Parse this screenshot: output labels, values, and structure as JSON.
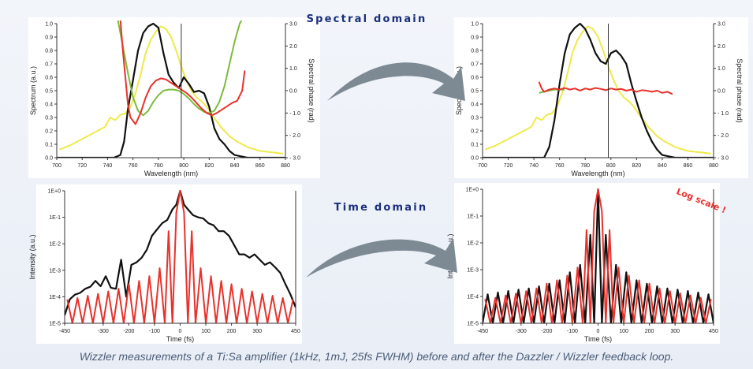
{
  "headings": {
    "spectral": "Spectral domain",
    "time": "Time domain",
    "log_scale": "Log scale !"
  },
  "caption": "Wizzler measurements of a Ti:Sa amplifier (1kHz, 1mJ, 25fs FWHM) before and after the Dazzler / Wizzler feedback loop.",
  "colors": {
    "spectrum": "#111111",
    "reference": "#eeea4a",
    "phase": "#e8322c",
    "fit": "#7cbc3c",
    "heading": "#1b2f7a",
    "arrow": "#7d8a93"
  },
  "chart_data": [
    {
      "id": "spectral-before",
      "type": "line",
      "xlabel": "Wavelength (nm)",
      "ylabel": "Spectrum (a.u.)",
      "y2label": "Spectral phase (rad)",
      "xlim": [
        700,
        880
      ],
      "ylim": [
        0,
        1.0
      ],
      "y2lim": [
        -3.0,
        3.0
      ],
      "xticks": [
        "700",
        "720",
        "740",
        "760",
        "780",
        "800",
        "820",
        "840",
        "860",
        "880"
      ],
      "yticks": [
        "0.0",
        "0.1",
        "0.2",
        "0.3",
        "0.4",
        "0.5",
        "0.6",
        "0.7",
        "0.8",
        "0.9",
        "1.0"
      ],
      "y2ticks": [
        "3.0",
        "2.0",
        "1.0",
        "0.0",
        "- 1.0",
        "- 2.0",
        "- 3.0"
      ],
      "vline": 798,
      "series": [
        {
          "role": "reference",
          "color": "#eeea4a",
          "axis": "y",
          "x": [
            702,
            710,
            720,
            730,
            738,
            742,
            746,
            750,
            754,
            758,
            762,
            766,
            770,
            774,
            778,
            782,
            786,
            790,
            794,
            798,
            802,
            806,
            810,
            814,
            818,
            822,
            826,
            830,
            836,
            842,
            850,
            860,
            870,
            878
          ],
          "y": [
            0.06,
            0.09,
            0.14,
            0.19,
            0.23,
            0.3,
            0.28,
            0.32,
            0.33,
            0.38,
            0.48,
            0.62,
            0.78,
            0.88,
            0.94,
            0.98,
            0.96,
            0.9,
            0.8,
            0.68,
            0.58,
            0.5,
            0.45,
            0.42,
            0.38,
            0.32,
            0.27,
            0.22,
            0.16,
            0.12,
            0.08,
            0.05,
            0.04,
            0.03
          ]
        },
        {
          "role": "spectrum",
          "color": "#111111",
          "axis": "y",
          "x": [
            700,
            745,
            750,
            753,
            756,
            760,
            764,
            768,
            772,
            776,
            780,
            784,
            788,
            792,
            796,
            800,
            804,
            808,
            812,
            816,
            820,
            824,
            828,
            832,
            836,
            840,
            845,
            850,
            860,
            880
          ],
          "y": [
            0,
            0,
            0.02,
            0.12,
            0.36,
            0.58,
            0.8,
            0.93,
            0.98,
            1.0,
            0.97,
            0.78,
            0.62,
            0.56,
            0.52,
            0.6,
            0.55,
            0.49,
            0.5,
            0.48,
            0.38,
            0.22,
            0.14,
            0.1,
            0.05,
            0.02,
            0.01,
            0,
            0,
            0
          ]
        },
        {
          "role": "fit",
          "color": "#7cbc3c",
          "axis": "y2",
          "x": [
            748,
            752,
            756,
            760,
            764,
            768,
            772,
            776,
            780,
            784,
            788,
            792,
            796,
            800,
            804,
            808,
            812,
            816,
            820,
            824,
            828,
            832,
            836,
            840,
            844,
            848
          ],
          "y": [
            3.2,
            2.0,
            0.8,
            -0.3,
            -0.9,
            -1.1,
            -0.9,
            -0.5,
            -0.2,
            0.0,
            0.05,
            0.05,
            0.0,
            -0.15,
            -0.35,
            -0.6,
            -0.8,
            -0.95,
            -1.0,
            -0.9,
            -0.5,
            0.2,
            1.2,
            2.2,
            3.0,
            3.4
          ]
        },
        {
          "role": "phase",
          "color": "#e8322c",
          "axis": "y2",
          "x": [
            750,
            752,
            754,
            756,
            758,
            762,
            766,
            770,
            774,
            778,
            782,
            786,
            790,
            794,
            798,
            802,
            806,
            810,
            814,
            818,
            822,
            826,
            830,
            834,
            838,
            842,
            846,
            848
          ],
          "y": [
            3.2,
            1.8,
            0.6,
            -0.6,
            -1.2,
            -1.5,
            -1.0,
            -0.3,
            0.2,
            0.45,
            0.55,
            0.5,
            0.35,
            0.2,
            0.05,
            -0.1,
            -0.3,
            -0.55,
            -0.8,
            -1.0,
            -1.1,
            -1.0,
            -0.85,
            -0.7,
            -0.55,
            -0.45,
            0.0,
            0.9
          ]
        }
      ]
    },
    {
      "id": "spectral-after",
      "type": "line",
      "xlabel": "Wavelength (nm)",
      "ylabel": "Spectrum (a.u.)",
      "y2label": "Spectral phase (rad)",
      "xlim": [
        700,
        880
      ],
      "ylim": [
        0,
        1.0
      ],
      "y2lim": [
        -3.0,
        3.0
      ],
      "xticks": [
        "700",
        "720",
        "740",
        "760",
        "780",
        "800",
        "820",
        "840",
        "860",
        "880"
      ],
      "yticks": [
        "0.0",
        "0.1",
        "0.2",
        "0.3",
        "0.4",
        "0.5",
        "0.6",
        "0.7",
        "0.8",
        "0.9",
        "1.0"
      ],
      "y2ticks": [
        "3.0",
        "2.0",
        "1.0",
        "0.0",
        "- 1.0",
        "- 2.0",
        "- 3.0"
      ],
      "vline": 798,
      "series": [
        {
          "role": "reference",
          "color": "#eeea4a",
          "axis": "y",
          "x": [
            702,
            710,
            720,
            730,
            738,
            742,
            746,
            750,
            754,
            758,
            762,
            766,
            770,
            774,
            778,
            782,
            786,
            790,
            794,
            798,
            802,
            806,
            810,
            814,
            818,
            822,
            826,
            830,
            836,
            842,
            850,
            860,
            870,
            878
          ],
          "y": [
            0.06,
            0.09,
            0.14,
            0.19,
            0.23,
            0.3,
            0.28,
            0.32,
            0.33,
            0.38,
            0.48,
            0.62,
            0.78,
            0.88,
            0.94,
            0.98,
            0.96,
            0.9,
            0.8,
            0.68,
            0.58,
            0.5,
            0.45,
            0.42,
            0.38,
            0.32,
            0.27,
            0.22,
            0.16,
            0.12,
            0.08,
            0.05,
            0.04,
            0.03
          ]
        },
        {
          "role": "spectrum",
          "color": "#111111",
          "axis": "y",
          "x": [
            700,
            748,
            752,
            756,
            760,
            764,
            768,
            772,
            776,
            780,
            784,
            788,
            792,
            796,
            800,
            804,
            808,
            812,
            816,
            820,
            824,
            828,
            832,
            836,
            840,
            845,
            850,
            880
          ],
          "y": [
            0,
            0,
            0.08,
            0.28,
            0.55,
            0.78,
            0.92,
            0.97,
            1.0,
            0.96,
            0.88,
            0.78,
            0.72,
            0.7,
            0.78,
            0.8,
            0.76,
            0.7,
            0.55,
            0.42,
            0.3,
            0.2,
            0.12,
            0.06,
            0.02,
            0.01,
            0,
            0
          ]
        },
        {
          "role": "fit",
          "color": "#7cbc3c",
          "axis": "y2",
          "x": [
            744,
            748,
            752,
            756,
            760,
            764
          ],
          "y": [
            -0.1,
            -0.05,
            0.0,
            0.05,
            0.05,
            0.05
          ]
        },
        {
          "role": "phase",
          "color": "#e8322c",
          "axis": "y2",
          "x": [
            744,
            746,
            748,
            752,
            756,
            760,
            764,
            768,
            772,
            776,
            780,
            784,
            788,
            792,
            796,
            800,
            804,
            808,
            812,
            816,
            820,
            824,
            828,
            832,
            836,
            840,
            844,
            848
          ],
          "y": [
            0.4,
            0.1,
            -0.05,
            0.05,
            0.1,
            0.05,
            0.12,
            0.05,
            0.1,
            0.0,
            0.1,
            0.05,
            0.12,
            0.08,
            0.02,
            0.1,
            0.05,
            0.08,
            0.0,
            0.05,
            -0.05,
            0.02,
            0.0,
            -0.05,
            0.0,
            -0.1,
            -0.05,
            -0.15
          ]
        }
      ]
    },
    {
      "id": "time-before",
      "type": "line",
      "yscale": "log",
      "xlabel": "Time (fs)",
      "ylabel": "Intensity (a.u.)",
      "xlim": [
        -450,
        450
      ],
      "ylim": [
        1e-05,
        1
      ],
      "xticks": [
        "-450",
        "-300",
        "-200",
        "-100",
        "0",
        "100",
        "200",
        "300",
        "450"
      ],
      "yticks": [
        "1E-5",
        "1E-4",
        "1E-3",
        "1E-2",
        "1E-1",
        "1E+0"
      ],
      "series": [
        {
          "role": "intensity",
          "color": "#111111",
          "x": [
            -450,
            -430,
            -410,
            -390,
            -370,
            -350,
            -330,
            -310,
            -290,
            -270,
            -250,
            -230,
            -210,
            -190,
            -170,
            -150,
            -130,
            -110,
            -90,
            -70,
            -50,
            -30,
            -15,
            0,
            15,
            30,
            50,
            70,
            90,
            110,
            130,
            150,
            170,
            190,
            210,
            230,
            250,
            270,
            290,
            310,
            330,
            350,
            370,
            390,
            410,
            430,
            450
          ],
          "y": [
            2e-05,
            8e-05,
            0.00012,
            0.00014,
            0.0002,
            0.00024,
            0.0004,
            0.00025,
            0.0006,
            0.00022,
            0.0002,
            0.0025,
            0.0001,
            0.0016,
            0.002,
            0.003,
            0.006,
            0.02,
            0.035,
            0.06,
            0.08,
            0.2,
            0.3,
            1.0,
            0.3,
            0.2,
            0.12,
            0.1,
            0.09,
            0.06,
            0.05,
            0.03,
            0.03,
            0.02,
            0.009,
            0.004,
            0.004,
            0.003,
            0.004,
            0.0025,
            0.0016,
            0.002,
            0.0013,
            0.0008,
            0.0003,
            0.00012,
            4e-05
          ]
        },
        {
          "role": "fit",
          "color": "#e8322c",
          "x": [
            -440,
            -420,
            -400,
            -380,
            -360,
            -340,
            -320,
            -300,
            -280,
            -260,
            -240,
            -220,
            -200,
            -180,
            -160,
            -140,
            -120,
            -100,
            -80,
            -60,
            -45,
            -30,
            -15,
            0,
            15,
            30,
            45,
            60,
            80,
            100,
            120,
            140,
            160,
            180,
            200,
            220,
            240,
            260,
            280,
            300,
            320,
            340,
            360,
            380,
            400,
            420,
            440
          ],
          "y": [
            8e-05,
            1e-05,
            9e-05,
            1e-05,
            0.00011,
            1e-05,
            0.00013,
            1e-05,
            0.00016,
            1e-05,
            0.0002,
            1e-05,
            0.0003,
            1e-05,
            0.0004,
            1e-05,
            0.0006,
            1e-05,
            0.0012,
            1e-05,
            0.03,
            1e-05,
            0.15,
            1.0,
            0.15,
            1e-05,
            0.03,
            1e-05,
            0.0012,
            1e-05,
            0.0006,
            1e-05,
            0.0004,
            1e-05,
            0.0003,
            1e-05,
            0.0002,
            1e-05,
            0.00016,
            1e-05,
            0.00013,
            1e-05,
            0.00011,
            1e-05,
            9e-05,
            1e-05,
            8e-05
          ]
        }
      ]
    },
    {
      "id": "time-after",
      "type": "line",
      "yscale": "log",
      "xlabel": "Time (fs)",
      "ylabel": "Intensity (a.u.)",
      "xlim": [
        -450,
        450
      ],
      "ylim": [
        1e-05,
        1
      ],
      "xticks": [
        "-450",
        "-300",
        "-200",
        "-100",
        "0",
        "100",
        "200",
        "300",
        "450"
      ],
      "yticks": [
        "1E-5",
        "1E-4",
        "1E-3",
        "1E-2",
        "1E-1",
        "1E+0"
      ],
      "series": [
        {
          "role": "intensity",
          "color": "#111111",
          "x": [
            -450,
            -430,
            -410,
            -390,
            -370,
            -350,
            -330,
            -310,
            -290,
            -270,
            -250,
            -230,
            -210,
            -190,
            -170,
            -150,
            -130,
            -110,
            -90,
            -70,
            -50,
            -30,
            -15,
            0,
            15,
            30,
            50,
            70,
            90,
            110,
            130,
            150,
            170,
            190,
            210,
            230,
            250,
            270,
            290,
            310,
            330,
            350,
            370,
            390,
            410,
            430,
            450
          ],
          "y": [
            1e-05,
            0.00012,
            1e-05,
            0.00014,
            1e-05,
            0.00016,
            1e-05,
            0.00018,
            1e-05,
            0.0002,
            1e-05,
            0.00024,
            1e-05,
            0.0003,
            1e-05,
            0.0004,
            1e-05,
            0.0008,
            1e-05,
            0.0015,
            1e-05,
            0.02,
            1e-05,
            1.0,
            1e-05,
            0.02,
            1e-05,
            0.0015,
            1e-05,
            0.0008,
            1e-05,
            0.0004,
            1e-05,
            0.0003,
            1e-05,
            0.00024,
            1e-05,
            0.0002,
            1e-05,
            0.00018,
            1e-05,
            0.00016,
            1e-05,
            0.00014,
            1e-05,
            0.00012,
            1e-05
          ]
        },
        {
          "role": "fit",
          "color": "#e8322c",
          "x": [
            -440,
            -420,
            -400,
            -380,
            -360,
            -340,
            -320,
            -300,
            -280,
            -260,
            -240,
            -220,
            -200,
            -180,
            -160,
            -140,
            -120,
            -100,
            -80,
            -60,
            -45,
            -30,
            -15,
            0,
            15,
            30,
            45,
            60,
            80,
            100,
            120,
            140,
            160,
            180,
            200,
            220,
            240,
            260,
            280,
            300,
            320,
            340,
            360,
            380,
            400,
            420,
            440
          ],
          "y": [
            8e-05,
            1e-05,
            9e-05,
            1e-05,
            0.00011,
            1e-05,
            0.00013,
            1e-05,
            0.00016,
            1e-05,
            0.0002,
            1e-05,
            0.0003,
            1e-05,
            0.0004,
            1e-05,
            0.0006,
            1e-05,
            0.0012,
            1e-05,
            0.03,
            1e-05,
            0.15,
            1.0,
            0.15,
            1e-05,
            0.03,
            1e-05,
            0.0012,
            1e-05,
            0.0006,
            1e-05,
            0.0004,
            1e-05,
            0.0003,
            1e-05,
            0.0002,
            1e-05,
            0.00016,
            1e-05,
            0.00013,
            1e-05,
            0.00011,
            1e-05,
            9e-05,
            1e-05,
            8e-05
          ]
        }
      ]
    }
  ]
}
